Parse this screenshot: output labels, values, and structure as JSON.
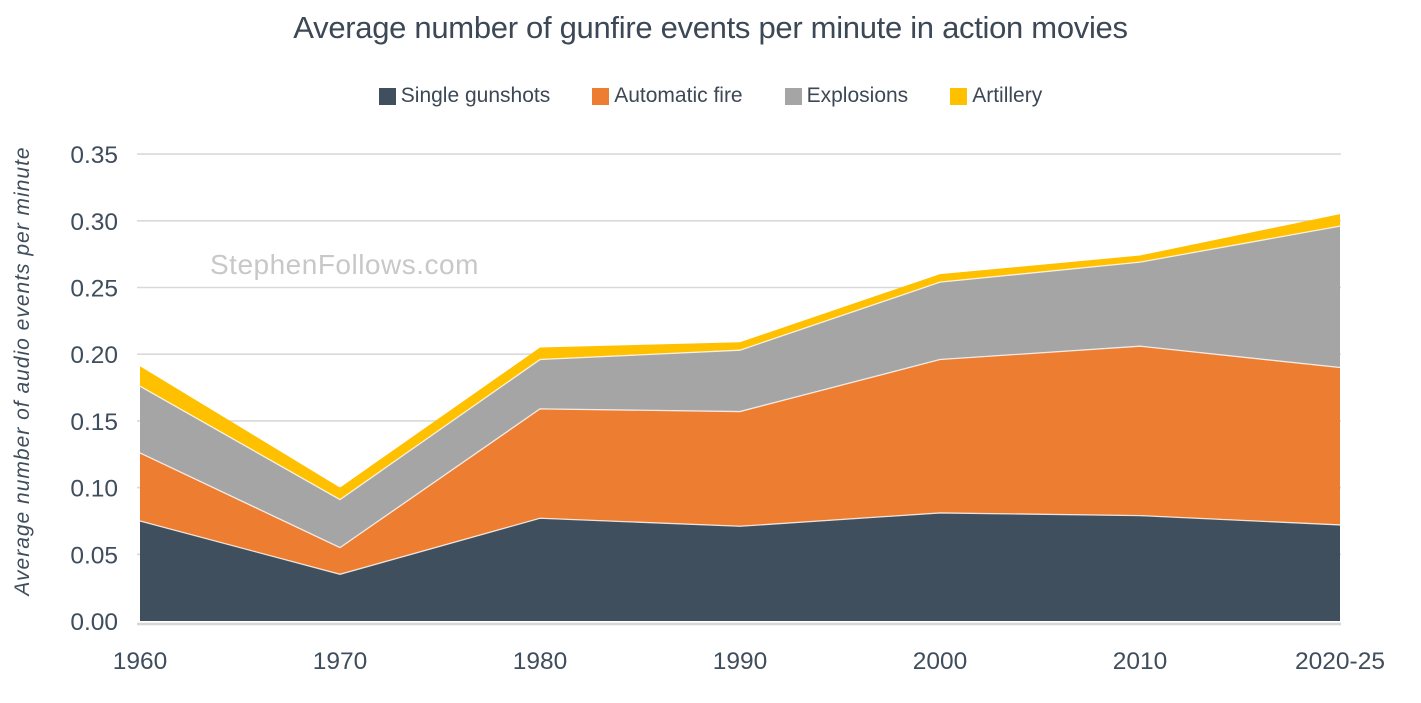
{
  "watermark": "StephenFollows.com",
  "chart_data": {
    "type": "area",
    "stacked": true,
    "title": "Average number of gunfire events per minute in action movies",
    "xlabel": "",
    "ylabel": "Average number of audio  events per minute",
    "categories": [
      "1960",
      "1970",
      "1980",
      "1990",
      "2000",
      "2010",
      "2020-25"
    ],
    "series": [
      {
        "name": "Single gunshots",
        "color": "#3f4f5e",
        "values": [
          0.075,
          0.035,
          0.077,
          0.071,
          0.081,
          0.079,
          0.072
        ]
      },
      {
        "name": "Automatic fire",
        "color": "#ed7d31",
        "values": [
          0.051,
          0.02,
          0.082,
          0.086,
          0.115,
          0.127,
          0.118
        ]
      },
      {
        "name": "Explosions",
        "color": "#a5a5a5",
        "values": [
          0.05,
          0.036,
          0.037,
          0.046,
          0.058,
          0.063,
          0.106
        ]
      },
      {
        "name": "Artillery",
        "color": "#ffc000",
        "values": [
          0.015,
          0.009,
          0.009,
          0.006,
          0.006,
          0.005,
          0.009
        ]
      }
    ],
    "cumulative_totals": [
      0.191,
      0.1,
      0.205,
      0.209,
      0.26,
      0.274,
      0.305
    ],
    "ylim": [
      0,
      0.35
    ],
    "ytick_step": 0.05,
    "yticks": [
      "0.00",
      "0.05",
      "0.10",
      "0.15",
      "0.20",
      "0.25",
      "0.30",
      "0.35"
    ],
    "grid": true,
    "legend_position": "top"
  },
  "styles": {
    "background": "#ffffff",
    "text_color": "#3c4856",
    "tick_color": "#3f4d5c",
    "grid_color": "#d9d9d9",
    "axis_line_color": "#d6d6d6",
    "watermark_color": "#c8c8c8",
    "band_separator_color": "rgba(255,255,255,0.8)"
  }
}
